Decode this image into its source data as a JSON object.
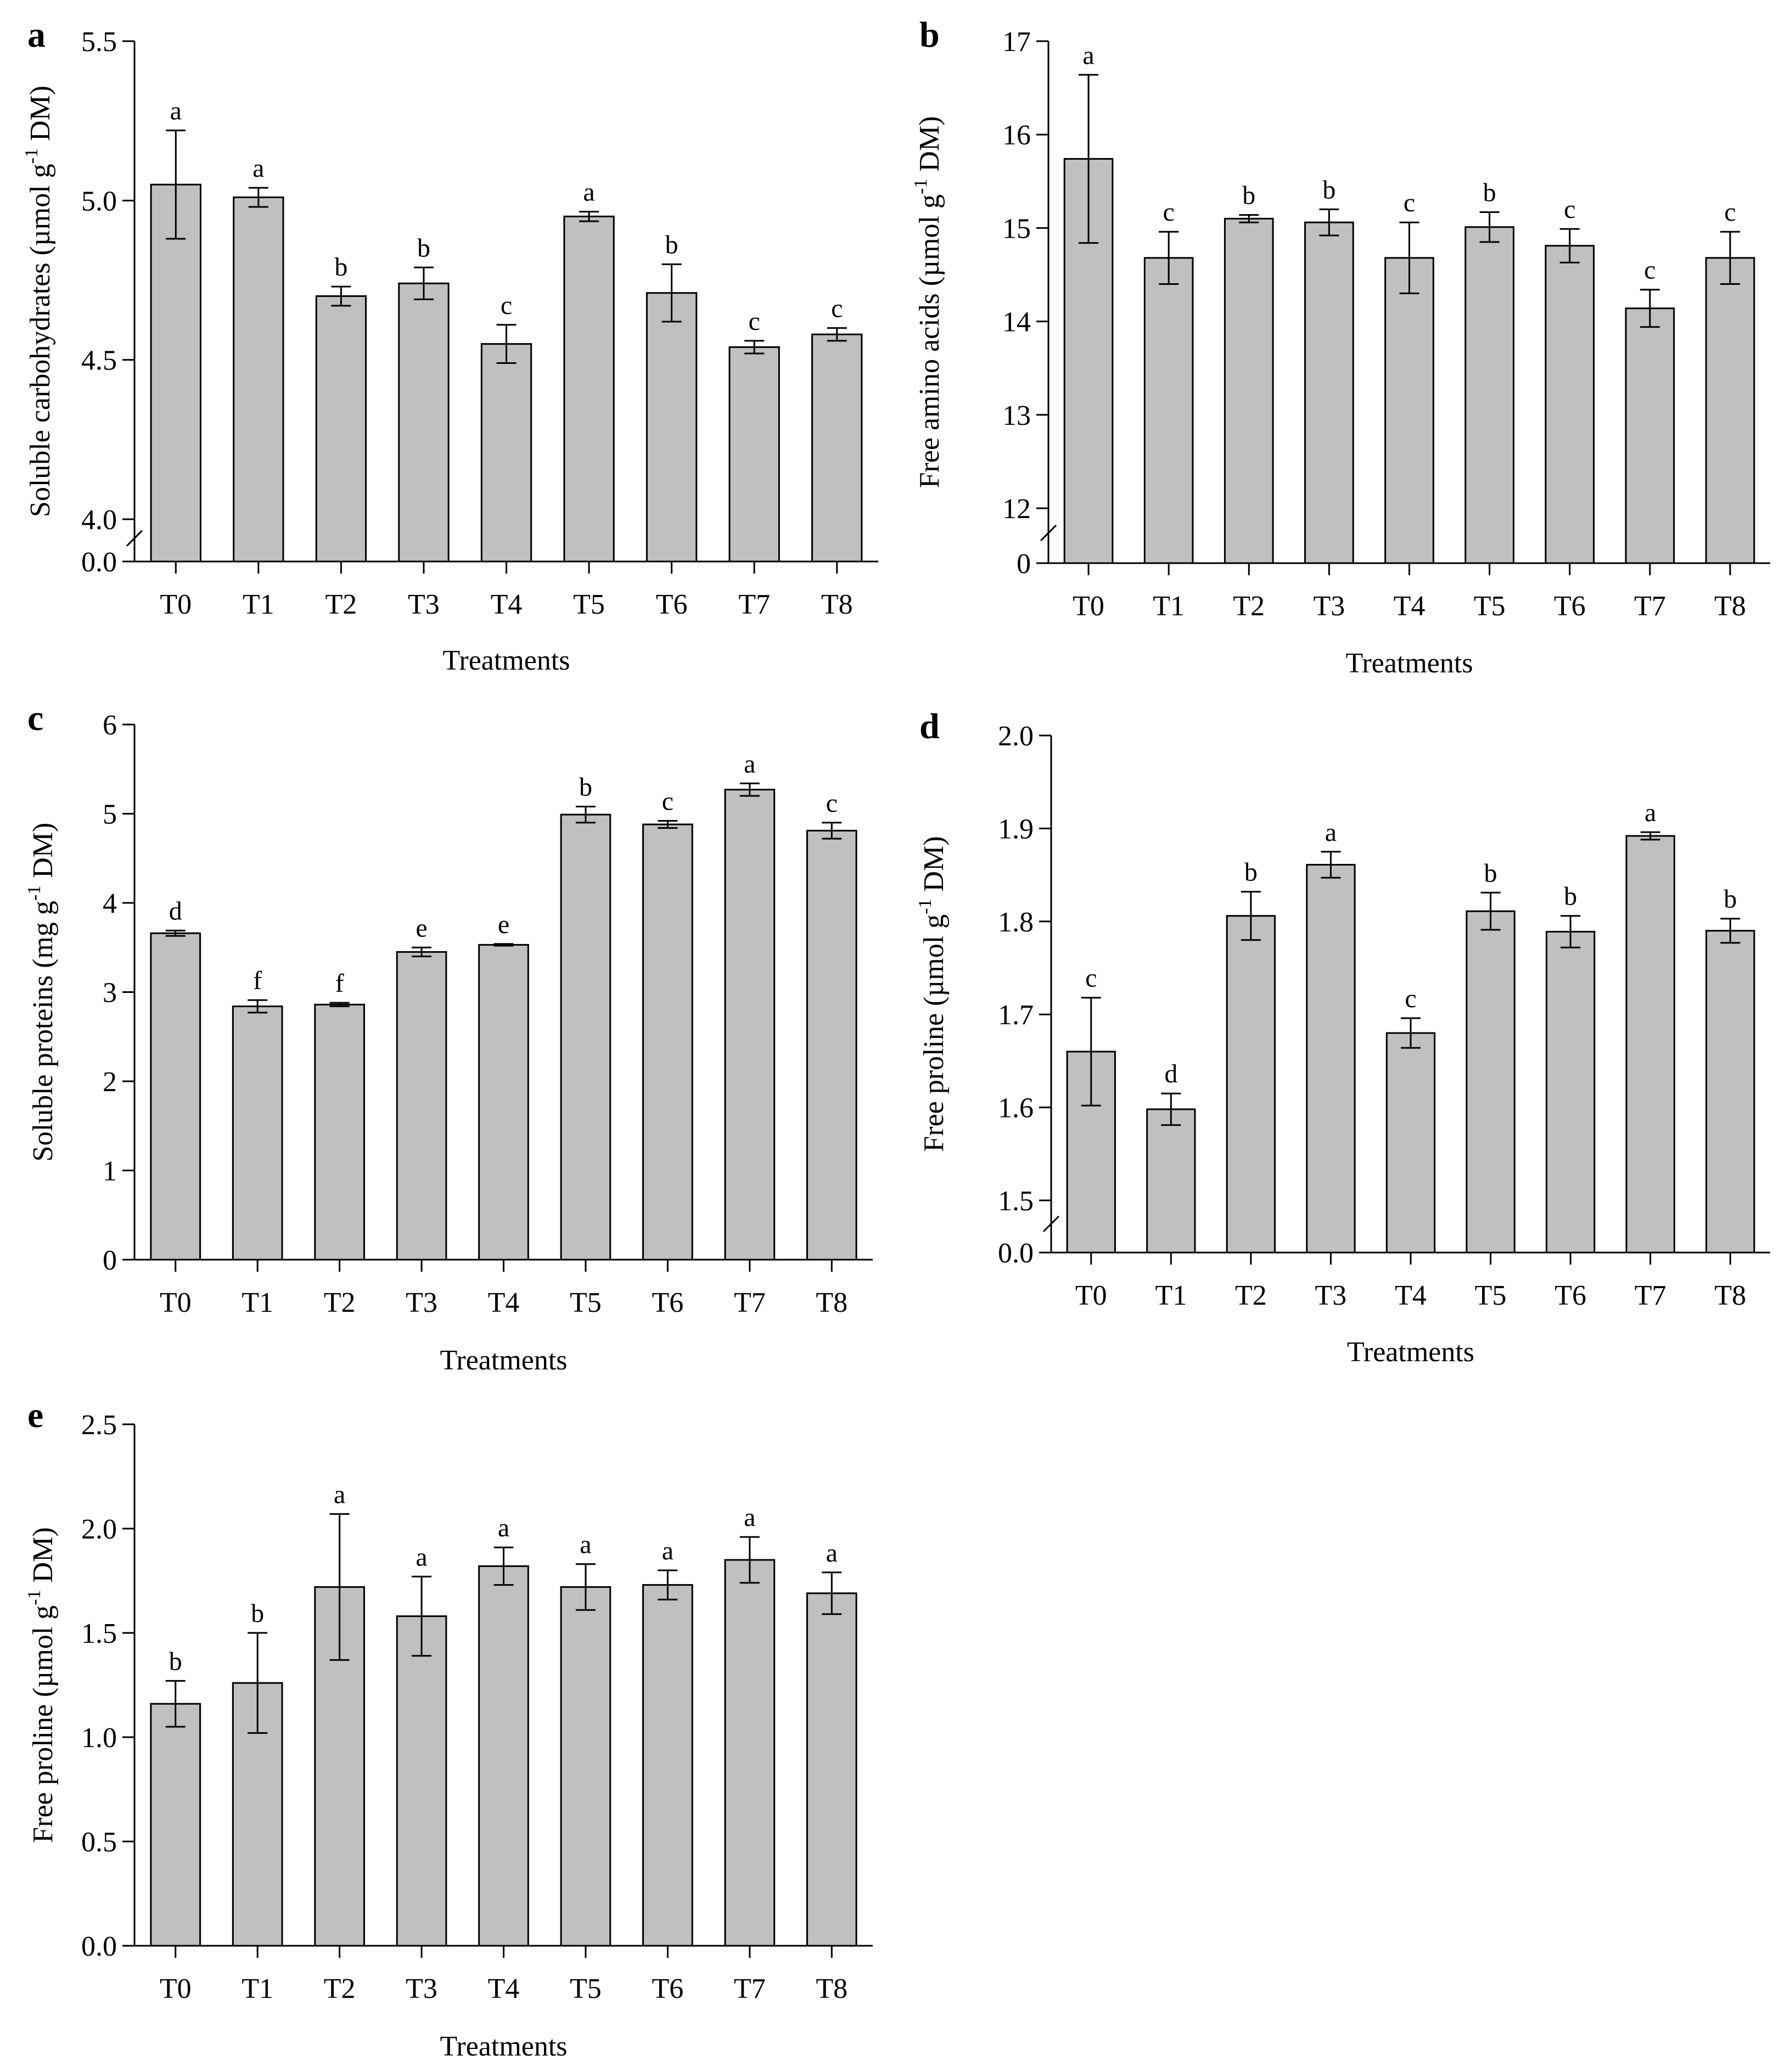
{
  "chart_data": [
    {
      "panel": "a",
      "type": "bar",
      "xlabel": "Treatments",
      "ylabel": {
        "pre": "Soluble carbohydrates (µmol g",
        "sup": "-1",
        "post": " DM)"
      },
      "categories": [
        "T0",
        "T1",
        "T2",
        "T3",
        "T4",
        "T5",
        "T6",
        "T7",
        "T8"
      ],
      "values": [
        5.05,
        5.01,
        4.7,
        4.74,
        4.55,
        4.95,
        4.71,
        4.54,
        4.58
      ],
      "errors": [
        0.17,
        0.03,
        0.03,
        0.05,
        0.06,
        0.015,
        0.09,
        0.02,
        0.02
      ],
      "letters": [
        "a",
        "a",
        "b",
        "b",
        "c",
        "a",
        "b",
        "c",
        "c"
      ],
      "axis_break": true,
      "ybase": 0.0,
      "ylim": [
        4.0,
        5.5
      ],
      "yticks": [
        4.0,
        4.5,
        5.0,
        5.5
      ],
      "ytick_labels": [
        "4.0",
        "4.5",
        "5.0",
        "5.5"
      ],
      "ybase_label": "0.0"
    },
    {
      "panel": "b",
      "type": "bar",
      "xlabel": "Treatments",
      "ylabel": {
        "pre": "Free amino acids (µmol g",
        "sup": "-1",
        "post": " DM)"
      },
      "categories": [
        "T0",
        "T1",
        "T2",
        "T3",
        "T4",
        "T5",
        "T6",
        "T7",
        "T8"
      ],
      "values": [
        15.74,
        14.68,
        15.1,
        15.06,
        14.68,
        15.01,
        14.81,
        14.14,
        14.68
      ],
      "errors": [
        0.9,
        0.28,
        0.04,
        0.14,
        0.38,
        0.16,
        0.18,
        0.2,
        0.28
      ],
      "letters": [
        "a",
        "c",
        "b",
        "b",
        "c",
        "b",
        "c",
        "c",
        "c"
      ],
      "axis_break": true,
      "ybase": 0,
      "ylim": [
        12,
        17
      ],
      "yticks": [
        12,
        13,
        14,
        15,
        16,
        17
      ],
      "ytick_labels": [
        "12",
        "13",
        "14",
        "15",
        "16",
        "17"
      ],
      "ybase_label": "0"
    },
    {
      "panel": "c",
      "type": "bar",
      "xlabel": "Treatments",
      "ylabel": {
        "pre": "Soluble proteins (mg g",
        "sup": "-1",
        "post": " DM)"
      },
      "categories": [
        "T0",
        "T1",
        "T2",
        "T3",
        "T4",
        "T5",
        "T6",
        "T7",
        "T8"
      ],
      "values": [
        3.66,
        2.84,
        2.86,
        3.45,
        3.53,
        4.99,
        4.88,
        5.27,
        4.81
      ],
      "errors": [
        0.03,
        0.07,
        0.02,
        0.05,
        0.01,
        0.09,
        0.04,
        0.07,
        0.09
      ],
      "letters": [
        "d",
        "f",
        "f",
        "e",
        "e",
        "b",
        "c",
        "a",
        "c"
      ],
      "axis_break": false,
      "ylim": [
        0,
        6
      ],
      "yticks": [
        0,
        1,
        2,
        3,
        4,
        5,
        6
      ],
      "ytick_labels": [
        "0",
        "1",
        "2",
        "3",
        "4",
        "5",
        "6"
      ]
    },
    {
      "panel": "d",
      "type": "bar",
      "xlabel": "Treatments",
      "ylabel": {
        "pre": "Free proline (µmol g",
        "sup": "-1",
        "post": " DM)"
      },
      "categories": [
        "T0",
        "T1",
        "T2",
        "T3",
        "T4",
        "T5",
        "T6",
        "T7",
        "T8"
      ],
      "values": [
        1.66,
        1.598,
        1.806,
        1.861,
        1.68,
        1.811,
        1.789,
        1.892,
        1.79
      ],
      "errors": [
        0.058,
        0.017,
        0.026,
        0.014,
        0.016,
        0.02,
        0.017,
        0.004,
        0.013
      ],
      "letters": [
        "c",
        "d",
        "b",
        "a",
        "c",
        "b",
        "b",
        "a",
        "b"
      ],
      "axis_break": true,
      "ybase": 0.0,
      "ylim": [
        1.5,
        2.0
      ],
      "yticks": [
        1.5,
        1.6,
        1.7,
        1.8,
        1.9,
        2.0
      ],
      "ytick_labels": [
        "1.5",
        "1.6",
        "1.7",
        "1.8",
        "1.9",
        "2.0"
      ],
      "ybase_label": "0.0"
    },
    {
      "panel": "e",
      "type": "bar",
      "xlabel": "Treatments",
      "ylabel": {
        "pre": "Free proline (µmol g",
        "sup": "-1",
        "post": " DM)"
      },
      "categories": [
        "T0",
        "T1",
        "T2",
        "T3",
        "T4",
        "T5",
        "T6",
        "T7",
        "T8"
      ],
      "values": [
        1.16,
        1.26,
        1.72,
        1.58,
        1.82,
        1.72,
        1.73,
        1.85,
        1.69
      ],
      "errors": [
        0.11,
        0.24,
        0.35,
        0.19,
        0.09,
        0.11,
        0.07,
        0.11,
        0.1
      ],
      "letters": [
        "b",
        "b",
        "a",
        "a",
        "a",
        "a",
        "a",
        "a",
        "a"
      ],
      "axis_break": false,
      "ylim": [
        0.0,
        2.5
      ],
      "yticks": [
        0.0,
        0.5,
        1.0,
        1.5,
        2.0,
        2.5
      ],
      "ytick_labels": [
        "0.0",
        "0.5",
        "1.0",
        "1.5",
        "2.0",
        "2.5"
      ]
    }
  ]
}
